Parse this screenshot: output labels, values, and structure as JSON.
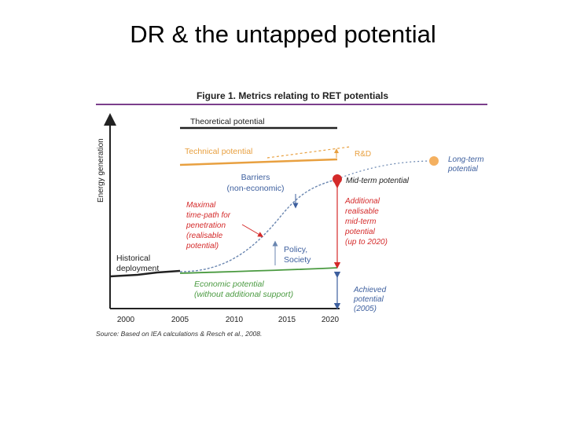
{
  "slide": {
    "title": "DR & the untapped potential"
  },
  "figure": {
    "caption": "Figure 1. Metrics relating to RET potentials",
    "y_axis_label": "Energy generation",
    "x_ticks": [
      "2000",
      "2005",
      "2010",
      "2015",
      "2020"
    ],
    "source": "Source: Based on IEA calculations & Resch et al., 2008.",
    "labels": {
      "theoretical": "Theoretical potential",
      "technical": "Technical potential",
      "rd": "R&D",
      "long_term": [
        "Long-term",
        "potential"
      ],
      "barriers": [
        "Barriers",
        "(non-economic)"
      ],
      "mid_term": "Mid-term potential",
      "maximal": [
        "Maximal",
        "time-path for",
        "penetration",
        "(realisable",
        "potential)"
      ],
      "additional": [
        "Additional",
        "realisable",
        "mid-term",
        "potential",
        "(up to 2020)"
      ],
      "historical": [
        "Historical",
        "deployment"
      ],
      "policy": [
        "Policy,",
        "Society"
      ],
      "economic": [
        "Economic potential",
        "(without additional support)"
      ],
      "achieved": [
        "Achieved",
        "potential",
        "(2005)"
      ]
    },
    "colors": {
      "purple_rule": "#7b3f8c",
      "orange": "#e8a040",
      "dot_orange": "#f4b060",
      "red": "#d42a2a",
      "blue": "#3d5f9e",
      "steel": "#6a86b0",
      "green": "#4a9a40",
      "dark": "#222222"
    }
  }
}
